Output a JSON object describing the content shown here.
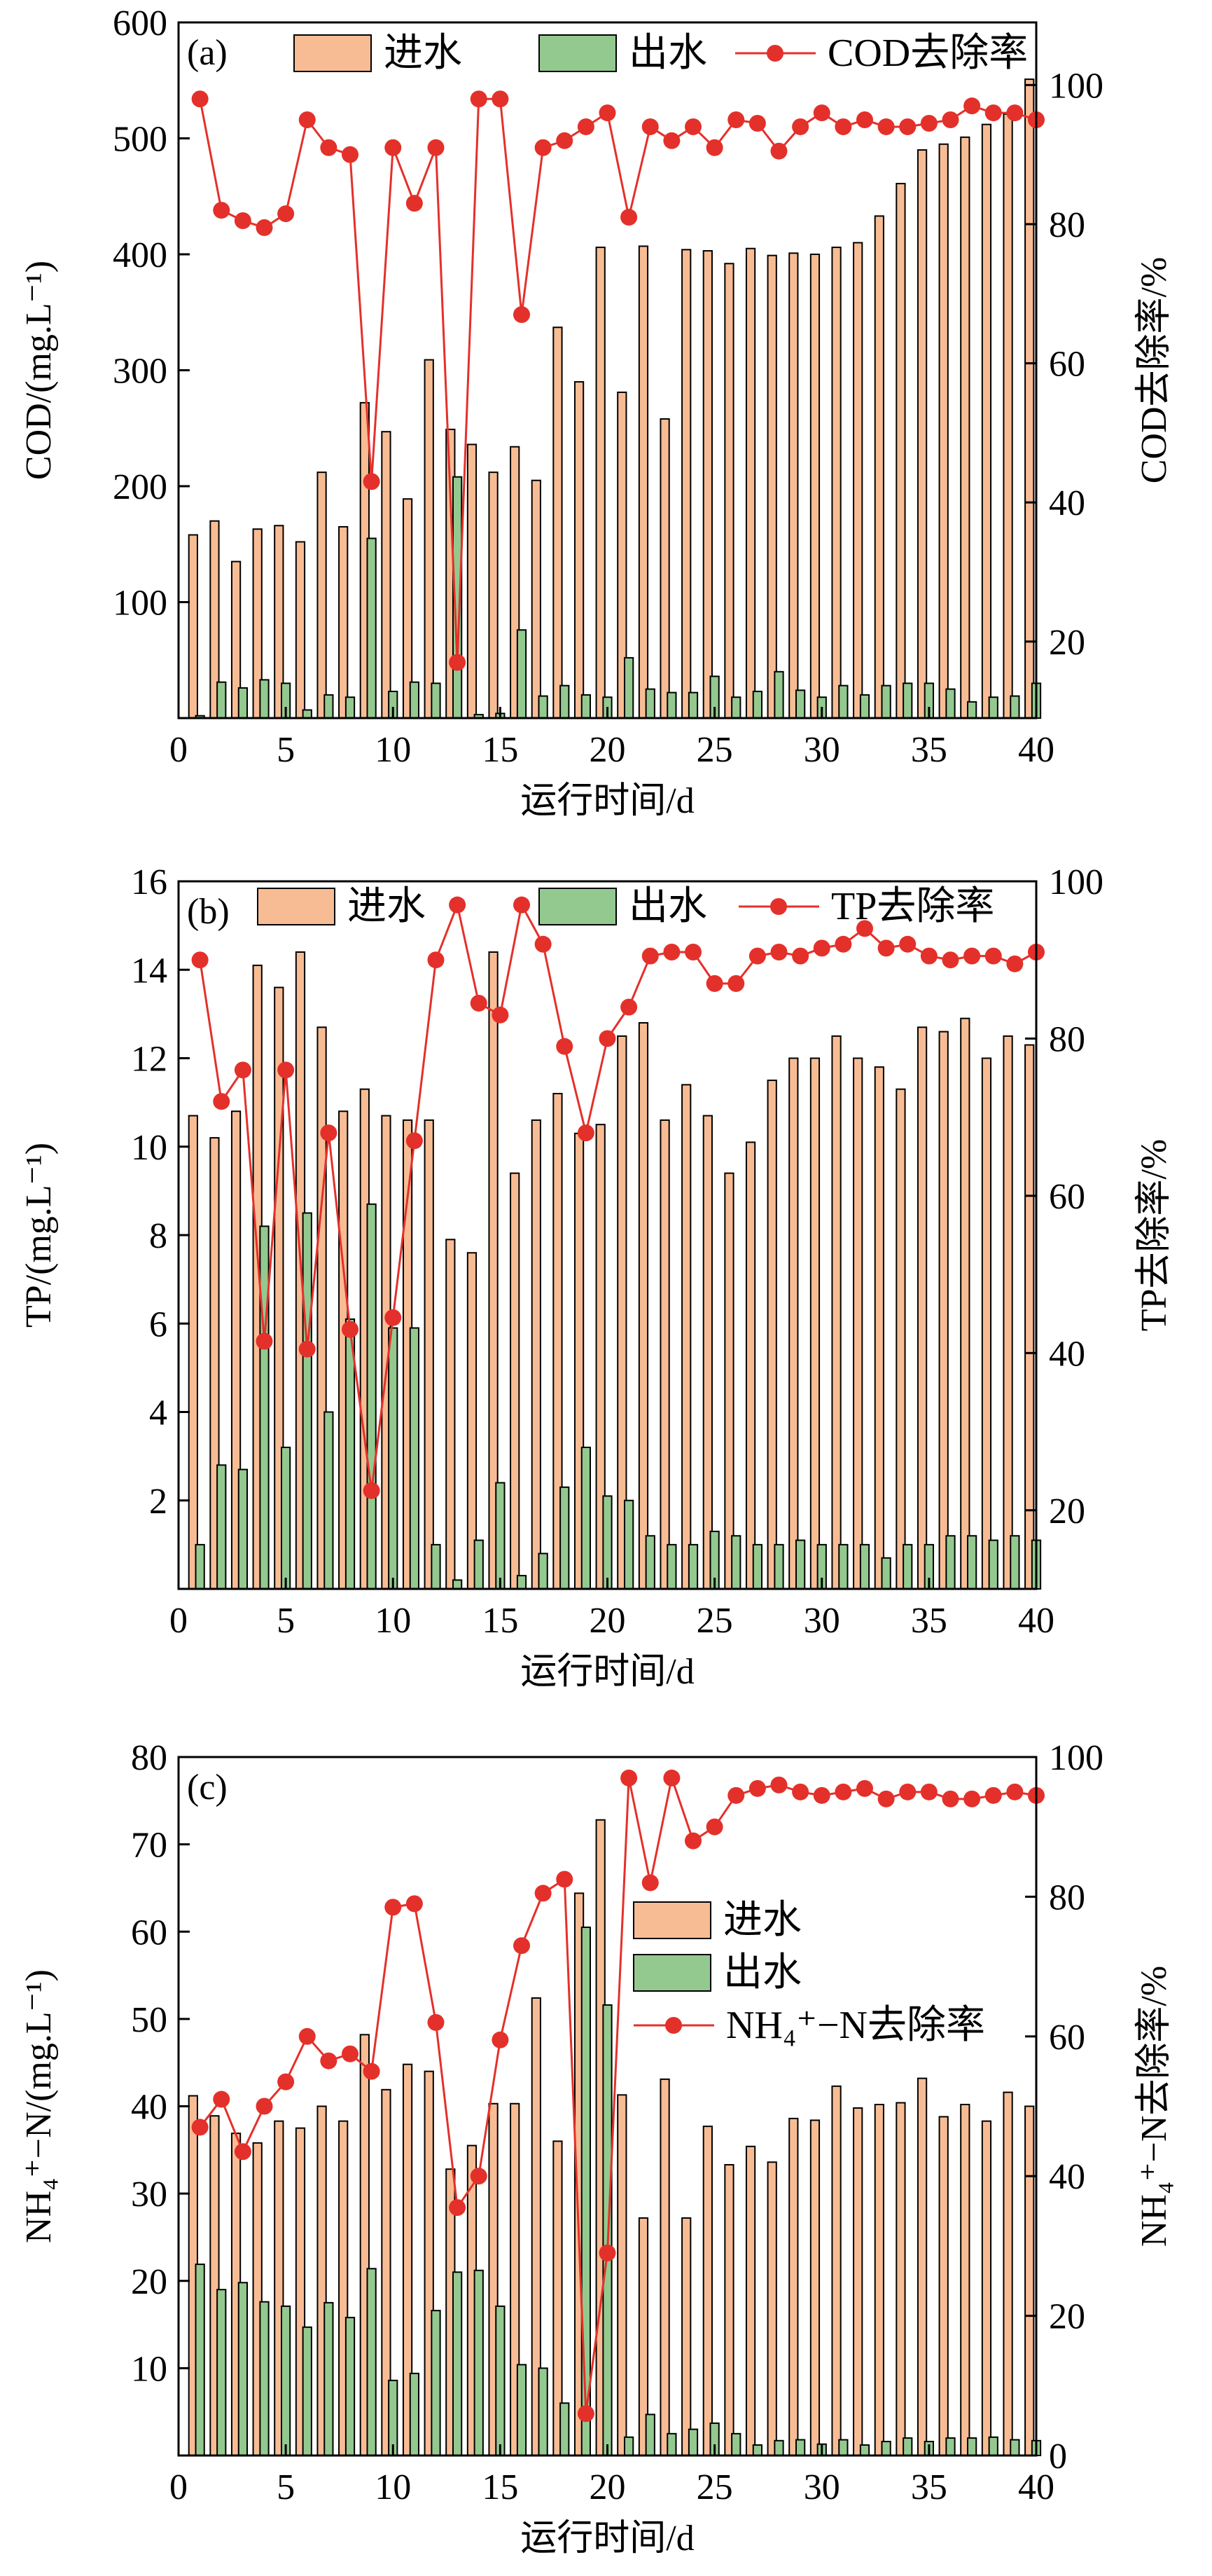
{
  "colors": {
    "influent": "#F8BC94",
    "effluent": "#93C98F",
    "removal": "#E4302A",
    "axis": "#000000"
  },
  "chart_data": [
    {
      "type": "bar",
      "tag": "(a)",
      "legend": [
        "进水",
        "出水",
        "COD去除率"
      ],
      "legend_position": "top",
      "xlabel": "运行时间/d",
      "ylabel": "COD/(mg.L⁻¹)",
      "ylabel2": "COD去除率/%",
      "xlim": [
        0,
        40
      ],
      "ylim": [
        0,
        600
      ],
      "y2lim": [
        9,
        109
      ],
      "xticks": [
        0,
        5,
        10,
        15,
        20,
        25,
        30,
        35,
        40
      ],
      "yticks": [
        100,
        200,
        300,
        400,
        500,
        600
      ],
      "yticks_labels": [
        "",
        "100",
        "200",
        "300",
        "400",
        "500",
        "600"
      ],
      "y2ticks": [
        20,
        40,
        60,
        80,
        100
      ],
      "x": [
        1,
        2,
        3,
        4,
        5,
        6,
        7,
        8,
        9,
        10,
        11,
        12,
        13,
        14,
        15,
        16,
        17,
        18,
        19,
        20,
        21,
        22,
        23,
        24,
        25,
        26,
        27,
        28,
        29,
        30,
        31,
        32,
        33,
        34,
        35,
        36,
        37,
        38,
        39,
        40
      ],
      "series": [
        {
          "name": "进水",
          "kind": "bar",
          "values": [
            158,
            170,
            135,
            163,
            166,
            152,
            212,
            165,
            272,
            247,
            189,
            309,
            249,
            236,
            212,
            234,
            205,
            337,
            290,
            406,
            281,
            407,
            258,
            404,
            403,
            392,
            405,
            399,
            401,
            400,
            406,
            410,
            433,
            461,
            490,
            495,
            501,
            512,
            521,
            551
          ]
        },
        {
          "name": "出水",
          "kind": "bar",
          "values": [
            2,
            31,
            26,
            33,
            30,
            7,
            20,
            18,
            155,
            23,
            31,
            30,
            208,
            3,
            4,
            76,
            19,
            28,
            20,
            18,
            52,
            25,
            22,
            22,
            36,
            18,
            23,
            40,
            24,
            18,
            28,
            20,
            28,
            30,
            30,
            25,
            14,
            18,
            19,
            30
          ]
        },
        {
          "name": "COD去除率",
          "kind": "line",
          "axis": "right",
          "values": [
            98,
            82,
            80.5,
            79.5,
            81.5,
            95,
            91,
            90,
            43,
            91,
            83,
            91,
            17,
            98,
            98,
            67,
            91,
            92,
            94,
            96,
            81,
            94,
            92,
            94,
            91,
            95,
            94.5,
            90.5,
            94,
            96,
            94,
            95,
            94,
            94,
            94.5,
            95,
            97,
            96,
            96,
            95
          ]
        }
      ]
    },
    {
      "type": "bar",
      "tag": "(b)",
      "legend": [
        "进水",
        "出水",
        "TP去除率"
      ],
      "legend_position": "top",
      "xlabel": "运行时间/d",
      "ylabel": "TP/(mg.L⁻¹)",
      "ylabel2": "TP去除率/%",
      "xlim": [
        0,
        40
      ],
      "ylim": [
        0,
        16
      ],
      "y2lim": [
        10,
        100
      ],
      "xticks": [
        0,
        5,
        10,
        15,
        20,
        25,
        30,
        35,
        40
      ],
      "yticks": [
        2,
        4,
        6,
        8,
        10,
        12,
        14,
        16
      ],
      "y2ticks": [
        20,
        40,
        60,
        80,
        100
      ],
      "x": [
        1,
        2,
        3,
        4,
        5,
        6,
        7,
        8,
        9,
        10,
        11,
        12,
        13,
        14,
        15,
        16,
        17,
        18,
        19,
        20,
        21,
        22,
        23,
        24,
        25,
        26,
        27,
        28,
        29,
        30,
        31,
        32,
        33,
        34,
        35,
        36,
        37,
        38,
        39,
        40
      ],
      "series": [
        {
          "name": "进水",
          "kind": "bar",
          "values": [
            10.7,
            10.2,
            10.8,
            14.1,
            13.6,
            14.4,
            12.7,
            10.8,
            11.3,
            10.7,
            10.6,
            10.6,
            7.9,
            7.6,
            14.4,
            9.4,
            10.6,
            11.2,
            10.3,
            10.5,
            12.5,
            12.8,
            10.6,
            11.4,
            10.7,
            9.4,
            10.1,
            11.5,
            12.0,
            12.0,
            12.5,
            12.0,
            11.8,
            11.3,
            12.7,
            12.6,
            12.9,
            12.0,
            12.5,
            12.3
          ]
        },
        {
          "name": "出水",
          "kind": "bar",
          "values": [
            1.0,
            2.8,
            2.7,
            8.2,
            3.2,
            8.5,
            4.0,
            6.1,
            8.7,
            5.9,
            5.9,
            1.0,
            0.2,
            1.1,
            2.4,
            0.3,
            0.8,
            2.3,
            3.2,
            2.1,
            2.0,
            1.2,
            1.0,
            1.0,
            1.3,
            1.2,
            1.0,
            1.0,
            1.1,
            1.0,
            1.0,
            1.0,
            0.7,
            1.0,
            1.0,
            1.2,
            1.2,
            1.1,
            1.2,
            1.1
          ]
        },
        {
          "name": "TP去除率",
          "kind": "line",
          "axis": "right",
          "values": [
            90,
            72,
            76,
            41.5,
            76,
            40.5,
            68,
            43,
            22.5,
            44.5,
            67,
            90,
            97,
            84.5,
            83,
            97,
            92,
            79,
            68,
            80,
            84,
            90.5,
            91,
            91,
            87,
            87,
            90.5,
            91,
            90.5,
            91.5,
            92,
            94,
            91.5,
            92,
            90.5,
            90,
            90.5,
            90.5,
            89.5,
            91
          ]
        }
      ]
    },
    {
      "type": "bar",
      "tag": "(c)",
      "legend": [
        "进水",
        "出水",
        "NH₄⁺−N去除率"
      ],
      "legend_position": "right",
      "xlabel": "运行时间/d",
      "ylabel": "NH₄⁺−N/(mg.L⁻¹)",
      "ylabel2": "NH₄⁺−N去除率/%",
      "xlim": [
        0,
        40
      ],
      "ylim": [
        0,
        80
      ],
      "y2lim": [
        0,
        100
      ],
      "xticks": [
        0,
        5,
        10,
        15,
        20,
        25,
        30,
        35,
        40
      ],
      "yticks": [
        10,
        20,
        30,
        40,
        50,
        60,
        70,
        80
      ],
      "y2ticks": [
        0,
        20,
        40,
        60,
        80,
        100
      ],
      "x": [
        1,
        2,
        3,
        4,
        5,
        6,
        7,
        8,
        9,
        10,
        11,
        12,
        13,
        14,
        15,
        16,
        17,
        18,
        19,
        20,
        21,
        22,
        23,
        24,
        25,
        26,
        27,
        28,
        29,
        30,
        31,
        32,
        33,
        34,
        35,
        36,
        37,
        38,
        39,
        40
      ],
      "series": [
        {
          "name": "进水",
          "kind": "bar",
          "values": [
            41.2,
            38.9,
            36.9,
            35.8,
            38.3,
            37.5,
            40.0,
            38.3,
            48.2,
            41.9,
            44.8,
            44.0,
            32.8,
            35.5,
            40.3,
            40.3,
            52.4,
            36.0,
            64.4,
            72.8,
            41.3,
            27.2,
            43.1,
            27.2,
            37.7,
            33.3,
            35.4,
            33.6,
            38.6,
            38.4,
            42.3,
            39.8,
            40.2,
            40.4,
            43.2,
            38.8,
            40.2,
            38.3,
            41.6,
            40.0
          ]
        },
        {
          "name": "出水",
          "kind": "bar",
          "values": [
            21.9,
            19.0,
            19.8,
            17.6,
            17.1,
            14.7,
            17.5,
            15.8,
            21.4,
            8.6,
            9.4,
            16.6,
            21.0,
            21.2,
            17.1,
            10.4,
            10.0,
            6.0,
            60.5,
            51.6,
            2.1,
            4.7,
            2.5,
            3.0,
            3.7,
            2.5,
            1.2,
            1.7,
            1.8,
            1.3,
            1.8,
            1.2,
            1.6,
            2.0,
            1.6,
            2.0,
            2.0,
            2.1,
            1.8,
            1.7
          ]
        },
        {
          "name": "NH₄⁺−N去除率",
          "kind": "line",
          "axis": "right",
          "values": [
            47,
            51,
            43.5,
            50,
            53.5,
            60,
            56.5,
            57.5,
            55,
            78.5,
            79,
            62,
            35.5,
            40,
            59.5,
            73,
            80.5,
            82.5,
            6,
            29,
            97,
            82,
            97,
            88,
            90,
            94.5,
            95.5,
            96,
            95,
            94.5,
            95,
            95.5,
            94,
            95,
            95,
            94,
            94,
            94.5,
            95,
            94.5
          ]
        }
      ]
    }
  ]
}
